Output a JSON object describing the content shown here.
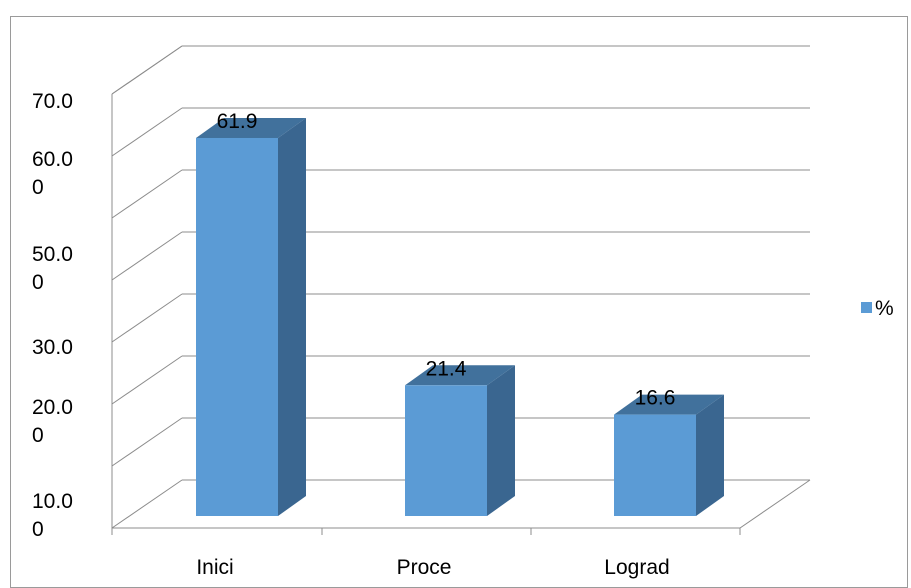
{
  "chart_data": {
    "type": "bar",
    "title": "",
    "xlabel": "",
    "ylabel": "",
    "categories": [
      "Inici",
      "Proce",
      "Lograd"
    ],
    "series": [
      {
        "name": "%",
        "values": [
          61.9,
          21.4,
          16.6
        ],
        "color": "#5B9BD5"
      }
    ],
    "data_labels": [
      "61.9",
      "21.4",
      "16.6"
    ],
    "ylim": [
      0,
      70
    ],
    "y_tick_labels": [
      [
        "70.0"
      ],
      [
        "60.0",
        "0"
      ],
      [
        "50.0",
        "0"
      ],
      [
        "30.0"
      ],
      [
        "20.0",
        "0"
      ],
      [
        "10.0",
        "0"
      ]
    ],
    "grid": true,
    "legend_position": "right",
    "style": "3d-column"
  }
}
